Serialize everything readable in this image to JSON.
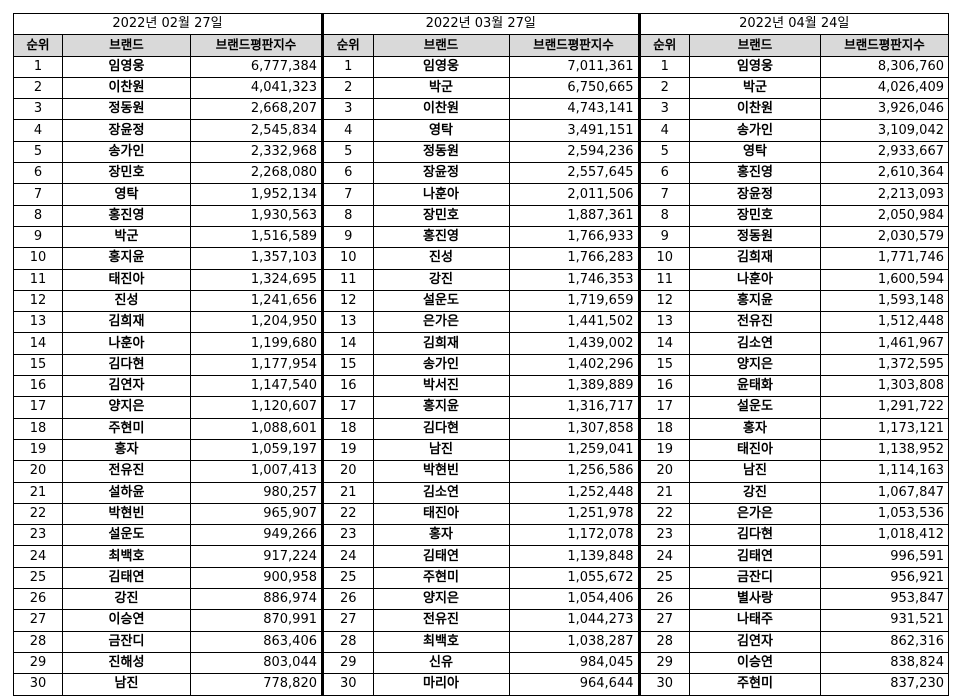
{
  "blocks": [
    {
      "date": "2022년 02월 27일",
      "headers": {
        "rank": "순위",
        "brand": "브랜드",
        "index": "브랜드평판지수"
      },
      "rows": [
        [
          "1",
          "임영웅",
          "6,777,384"
        ],
        [
          "2",
          "이찬원",
          "4,041,323"
        ],
        [
          "3",
          "정동원",
          "2,668,207"
        ],
        [
          "4",
          "장윤정",
          "2,545,834"
        ],
        [
          "5",
          "송가인",
          "2,332,968"
        ],
        [
          "6",
          "장민호",
          "2,268,080"
        ],
        [
          "7",
          "영탁",
          "1,952,134"
        ],
        [
          "8",
          "홍진영",
          "1,930,563"
        ],
        [
          "9",
          "박군",
          "1,516,589"
        ],
        [
          "10",
          "홍지윤",
          "1,357,103"
        ],
        [
          "11",
          "태진아",
          "1,324,695"
        ],
        [
          "12",
          "진성",
          "1,241,656"
        ],
        [
          "13",
          "김희재",
          "1,204,950"
        ],
        [
          "14",
          "나훈아",
          "1,199,680"
        ],
        [
          "15",
          "김다현",
          "1,177,954"
        ],
        [
          "16",
          "김연자",
          "1,147,540"
        ],
        [
          "17",
          "양지은",
          "1,120,607"
        ],
        [
          "18",
          "주현미",
          "1,088,601"
        ],
        [
          "19",
          "홍자",
          "1,059,197"
        ],
        [
          "20",
          "전유진",
          "1,007,413"
        ],
        [
          "21",
          "설하윤",
          "980,257"
        ],
        [
          "22",
          "박현빈",
          "965,907"
        ],
        [
          "23",
          "설운도",
          "949,266"
        ],
        [
          "24",
          "최백호",
          "917,224"
        ],
        [
          "25",
          "김태연",
          "900,958"
        ],
        [
          "26",
          "강진",
          "886,974"
        ],
        [
          "27",
          "이승연",
          "870,991"
        ],
        [
          "28",
          "금잔디",
          "863,406"
        ],
        [
          "29",
          "진해성",
          "803,044"
        ],
        [
          "30",
          "남진",
          "778,820"
        ]
      ]
    },
    {
      "date": "2022년 03월 27일",
      "headers": {
        "rank": "순위",
        "brand": "브랜드",
        "index": "브랜드평판지수"
      },
      "rows": [
        [
          "1",
          "임영웅",
          "7,011,361"
        ],
        [
          "2",
          "박군",
          "6,750,665"
        ],
        [
          "3",
          "이찬원",
          "4,743,141"
        ],
        [
          "4",
          "영탁",
          "3,491,151"
        ],
        [
          "5",
          "정동원",
          "2,594,236"
        ],
        [
          "6",
          "장윤정",
          "2,557,645"
        ],
        [
          "7",
          "나훈아",
          "2,011,506"
        ],
        [
          "8",
          "장민호",
          "1,887,361"
        ],
        [
          "9",
          "홍진영",
          "1,766,933"
        ],
        [
          "10",
          "진성",
          "1,766,283"
        ],
        [
          "11",
          "강진",
          "1,746,353"
        ],
        [
          "12",
          "설운도",
          "1,719,659"
        ],
        [
          "13",
          "은가은",
          "1,441,502"
        ],
        [
          "14",
          "김희재",
          "1,439,002"
        ],
        [
          "15",
          "송가인",
          "1,402,296"
        ],
        [
          "16",
          "박서진",
          "1,389,889"
        ],
        [
          "17",
          "홍지윤",
          "1,316,717"
        ],
        [
          "18",
          "김다현",
          "1,307,858"
        ],
        [
          "19",
          "남진",
          "1,259,041"
        ],
        [
          "20",
          "박현빈",
          "1,256,586"
        ],
        [
          "21",
          "김소연",
          "1,252,448"
        ],
        [
          "22",
          "태진아",
          "1,251,978"
        ],
        [
          "23",
          "홍자",
          "1,172,078"
        ],
        [
          "24",
          "김태연",
          "1,139,848"
        ],
        [
          "25",
          "주현미",
          "1,055,672"
        ],
        [
          "26",
          "양지은",
          "1,054,406"
        ],
        [
          "27",
          "전유진",
          "1,044,273"
        ],
        [
          "28",
          "최백호",
          "1,038,287"
        ],
        [
          "29",
          "신유",
          "984,045"
        ],
        [
          "30",
          "마리아",
          "964,644"
        ]
      ]
    },
    {
      "date": "2022년 04월 24일",
      "headers": {
        "rank": "순위",
        "brand": "브랜드",
        "index": "브랜드평판지수"
      },
      "rows": [
        [
          "1",
          "임영웅",
          "8,306,760"
        ],
        [
          "2",
          "박군",
          "4,026,409"
        ],
        [
          "3",
          "이찬원",
          "3,926,046"
        ],
        [
          "4",
          "송가인",
          "3,109,042"
        ],
        [
          "5",
          "영탁",
          "2,933,667"
        ],
        [
          "6",
          "홍진영",
          "2,610,364"
        ],
        [
          "7",
          "장윤정",
          "2,213,093"
        ],
        [
          "8",
          "장민호",
          "2,050,984"
        ],
        [
          "9",
          "정동원",
          "2,030,579"
        ],
        [
          "10",
          "김희재",
          "1,771,746"
        ],
        [
          "11",
          "나훈아",
          "1,600,594"
        ],
        [
          "12",
          "홍지윤",
          "1,593,148"
        ],
        [
          "13",
          "전유진",
          "1,512,448"
        ],
        [
          "14",
          "김소연",
          "1,461,967"
        ],
        [
          "15",
          "양지은",
          "1,372,595"
        ],
        [
          "16",
          "윤태화",
          "1,303,808"
        ],
        [
          "17",
          "설운도",
          "1,291,722"
        ],
        [
          "18",
          "홍자",
          "1,173,121"
        ],
        [
          "19",
          "태진아",
          "1,138,952"
        ],
        [
          "20",
          "남진",
          "1,114,163"
        ],
        [
          "21",
          "강진",
          "1,067,847"
        ],
        [
          "22",
          "은가은",
          "1,053,536"
        ],
        [
          "23",
          "김다현",
          "1,018,412"
        ],
        [
          "24",
          "김태연",
          "996,591"
        ],
        [
          "25",
          "금잔디",
          "956,921"
        ],
        [
          "26",
          "별사랑",
          "953,847"
        ],
        [
          "27",
          "나태주",
          "931,521"
        ],
        [
          "28",
          "김연자",
          "862,316"
        ],
        [
          "29",
          "이승연",
          "838,824"
        ],
        [
          "30",
          "주현미",
          "837,230"
        ]
      ]
    }
  ]
}
